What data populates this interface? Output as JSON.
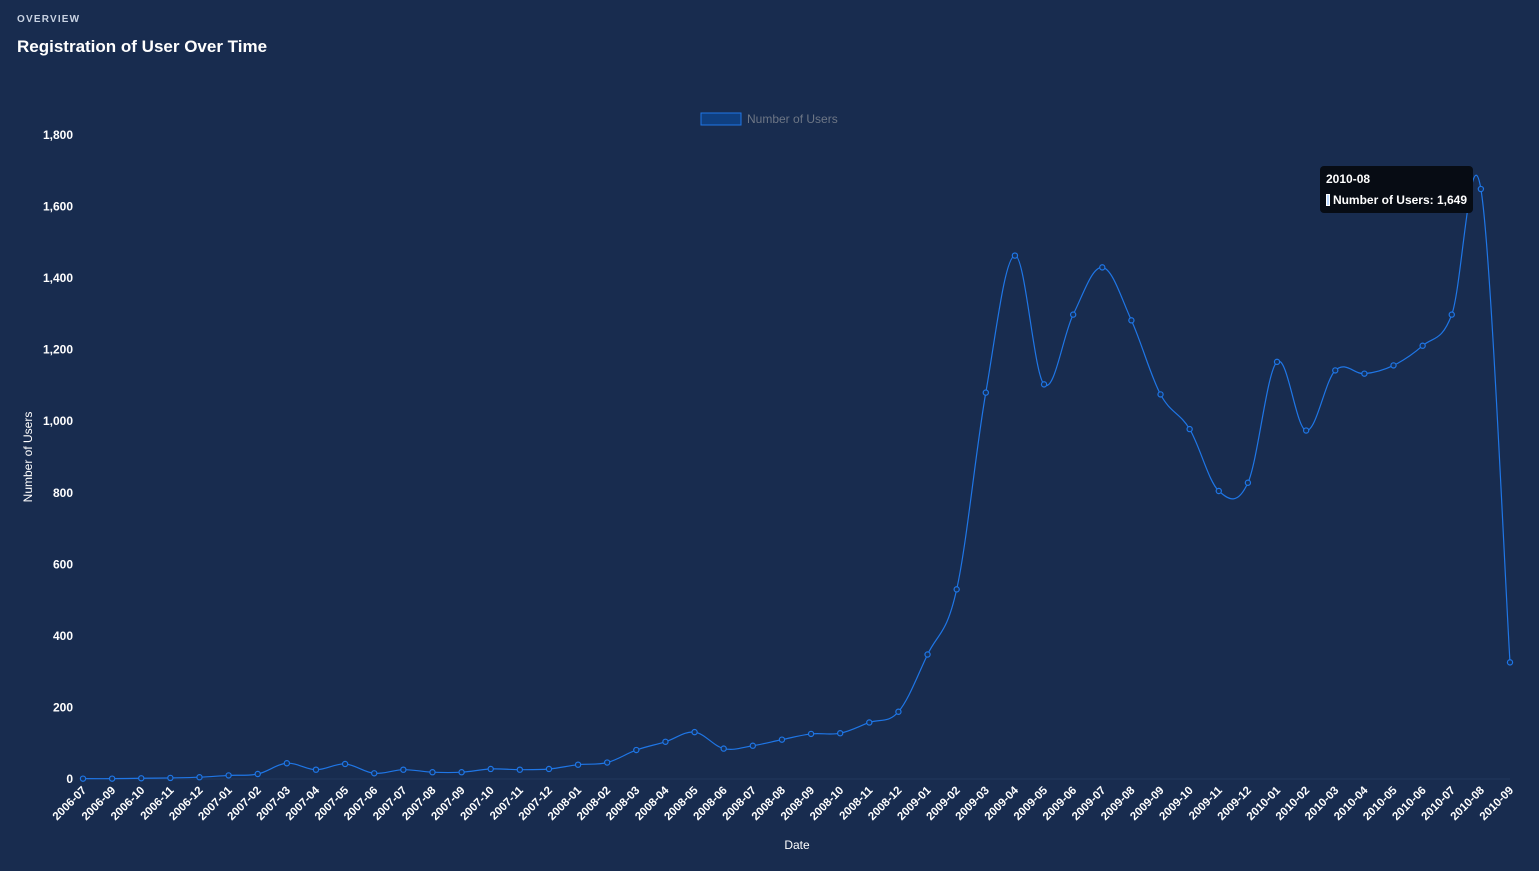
{
  "header": {
    "overline": "OVERVIEW",
    "title": "Registration of User Over Time"
  },
  "colors": {
    "background": "#182c4f",
    "line": "#1f76e6",
    "legend_fill": "#0f3f80"
  },
  "tooltip": {
    "title": "2010-08",
    "label": "Number of Users: 1,649"
  },
  "chart_data": {
    "type": "line",
    "xlabel": "Date",
    "ylabel": "Number of Users",
    "ylim": [
      0,
      1800
    ],
    "yticks": [
      0,
      200,
      400,
      600,
      800,
      1000,
      1200,
      1400,
      1600,
      1800
    ],
    "ytick_labels": [
      "0",
      "200",
      "400",
      "600",
      "800",
      "1,000",
      "1,200",
      "1,400",
      "1,600",
      "1,800"
    ],
    "legend": {
      "position": "top-center",
      "entries": [
        "Number of Users"
      ]
    },
    "grid": false,
    "categories": [
      "2006-07",
      "2006-09",
      "2006-10",
      "2006-11",
      "2006-12",
      "2007-01",
      "2007-02",
      "2007-03",
      "2007-04",
      "2007-05",
      "2007-06",
      "2007-07",
      "2007-08",
      "2007-09",
      "2007-10",
      "2007-11",
      "2007-12",
      "2008-01",
      "2008-02",
      "2008-03",
      "2008-04",
      "2008-05",
      "2008-06",
      "2008-07",
      "2008-08",
      "2008-09",
      "2008-10",
      "2008-11",
      "2008-12",
      "2009-01",
      "2009-02",
      "2009-03",
      "2009-04",
      "2009-05",
      "2009-06",
      "2009-07",
      "2009-08",
      "2009-09",
      "2009-10",
      "2009-11",
      "2009-12",
      "2010-01",
      "2010-02",
      "2010-03",
      "2010-04",
      "2010-05",
      "2010-06",
      "2010-07",
      "2010-08",
      "2010-09"
    ],
    "series": [
      {
        "name": "Number of Users",
        "values": [
          1,
          1,
          2,
          3,
          5,
          10,
          14,
          44,
          26,
          42,
          16,
          26,
          19,
          19,
          28,
          26,
          28,
          40,
          46,
          81,
          104,
          131,
          85,
          93,
          110,
          126,
          128,
          158,
          188,
          348,
          530,
          1080,
          1463,
          1103,
          1298,
          1430,
          1282,
          1075,
          978,
          805,
          828,
          1166,
          974,
          1142,
          1133,
          1156,
          1211,
          1298,
          1649,
          326
        ]
      }
    ]
  }
}
